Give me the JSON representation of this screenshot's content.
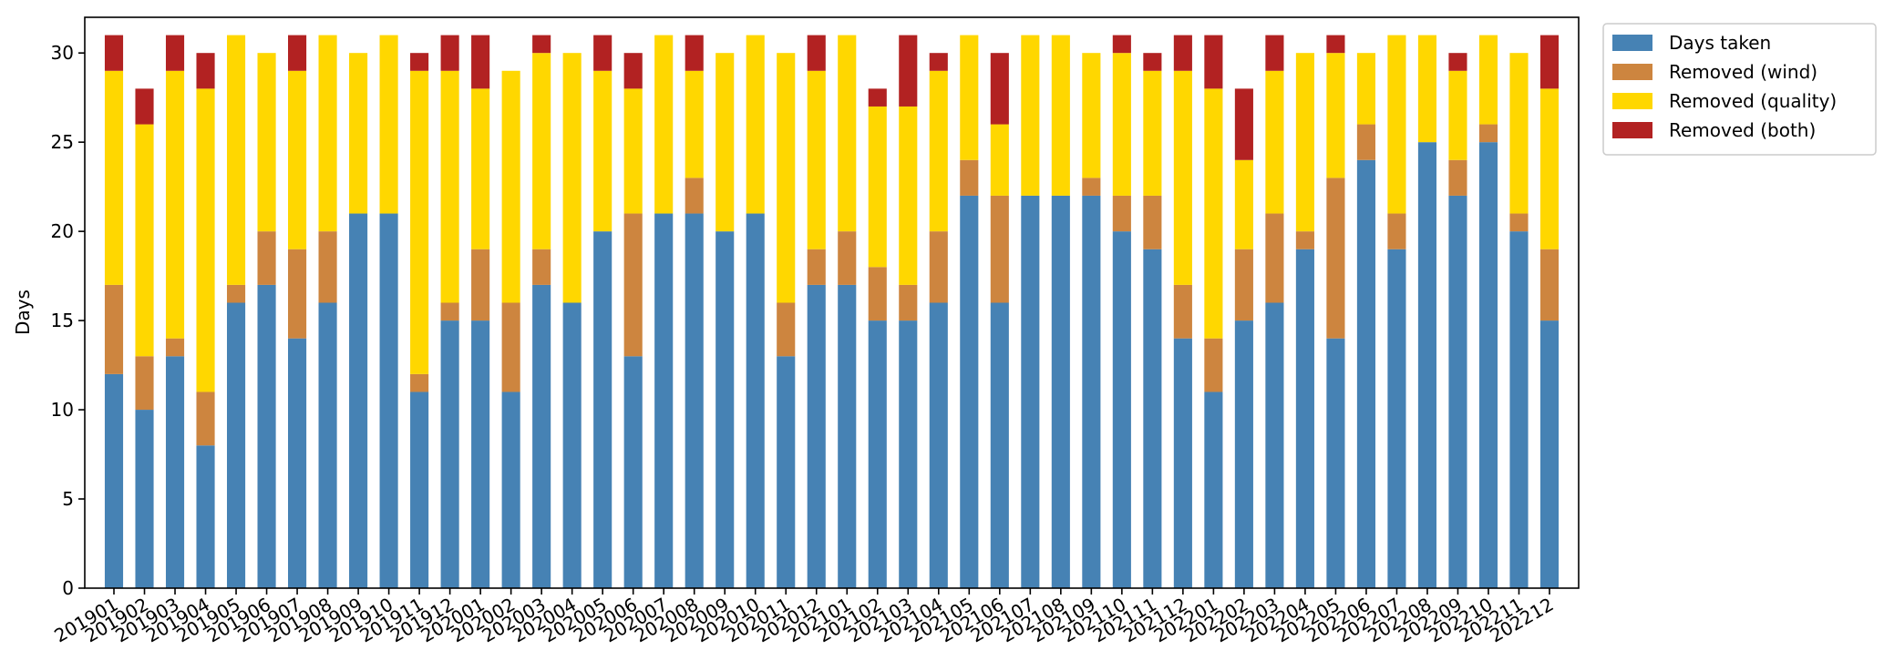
{
  "chart_data": {
    "type": "bar",
    "stacked": true,
    "title": "",
    "xlabel": "",
    "ylabel": "Days",
    "ylim": [
      0,
      32
    ],
    "yticks": [
      0,
      5,
      10,
      15,
      20,
      25,
      30
    ],
    "grid": false,
    "legend_position": "outside-top-right",
    "categories": [
      "201901",
      "201902",
      "201903",
      "201904",
      "201905",
      "201906",
      "201907",
      "201908",
      "201909",
      "201910",
      "201911",
      "201912",
      "202001",
      "202002",
      "202003",
      "202004",
      "202005",
      "202006",
      "202007",
      "202008",
      "202009",
      "202010",
      "202011",
      "202012",
      "202101",
      "202102",
      "202103",
      "202104",
      "202105",
      "202106",
      "202107",
      "202108",
      "202109",
      "202110",
      "202111",
      "202112",
      "202201",
      "202202",
      "202203",
      "202204",
      "202205",
      "202206",
      "202207",
      "202208",
      "202209",
      "202210",
      "202211",
      "202212"
    ],
    "series": [
      {
        "name": "Days taken",
        "color": "#4682b4",
        "values": [
          12,
          10,
          13,
          8,
          16,
          17,
          14,
          16,
          21,
          21,
          11,
          15,
          15,
          11,
          17,
          16,
          20,
          13,
          21,
          21,
          20,
          21,
          13,
          17,
          17,
          15,
          15,
          16,
          22,
          16,
          22,
          22,
          22,
          20,
          19,
          14,
          11,
          15,
          16,
          19,
          14,
          24,
          19,
          25,
          22,
          25,
          20,
          15
        ]
      },
      {
        "name": "Removed (wind)",
        "color": "#cd853f",
        "values": [
          5,
          3,
          1,
          3,
          1,
          3,
          5,
          4,
          0,
          0,
          1,
          1,
          4,
          5,
          2,
          0,
          0,
          8,
          0,
          2,
          0,
          0,
          3,
          2,
          3,
          3,
          2,
          4,
          2,
          6,
          0,
          0,
          1,
          2,
          3,
          3,
          3,
          4,
          5,
          1,
          9,
          2,
          2,
          0,
          2,
          1,
          1,
          4
        ]
      },
      {
        "name": "Removed (quality)",
        "color": "#ffd700",
        "values": [
          12,
          13,
          15,
          17,
          14,
          10,
          10,
          11,
          9,
          10,
          17,
          13,
          9,
          13,
          11,
          14,
          9,
          7,
          10,
          6,
          10,
          10,
          14,
          10,
          11,
          9,
          10,
          9,
          7,
          4,
          9,
          9,
          7,
          8,
          7,
          12,
          14,
          5,
          8,
          10,
          7,
          4,
          10,
          6,
          5,
          5,
          9,
          9
        ]
      },
      {
        "name": "Removed (both)",
        "color": "#b22222",
        "values": [
          2,
          2,
          2,
          2,
          0,
          0,
          2,
          0,
          0,
          0,
          1,
          2,
          3,
          0,
          1,
          0,
          2,
          2,
          0,
          2,
          0,
          0,
          0,
          2,
          0,
          1,
          4,
          1,
          0,
          4,
          0,
          0,
          0,
          1,
          1,
          2,
          3,
          4,
          2,
          0,
          1,
          0,
          0,
          0,
          1,
          0,
          0,
          3
        ]
      }
    ]
  }
}
